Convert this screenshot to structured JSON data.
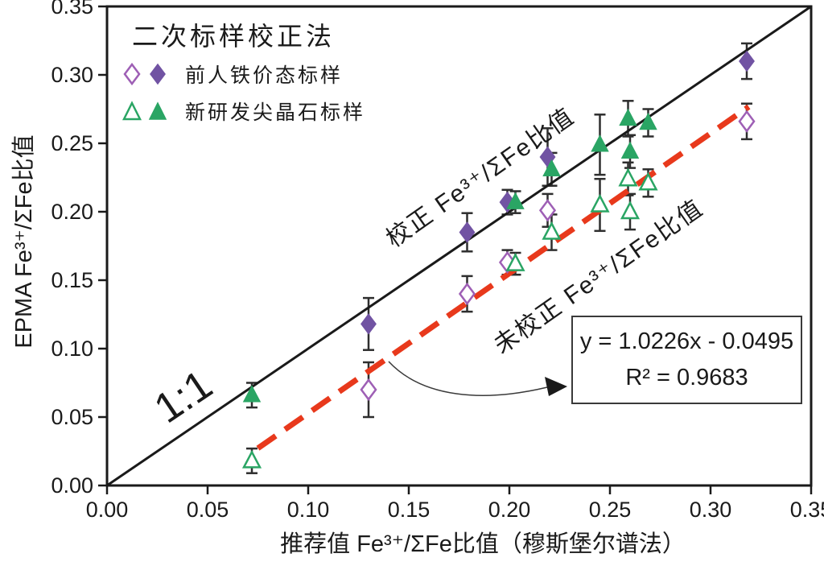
{
  "title": "二次标样校正法",
  "legend": {
    "items": [
      {
        "label": "前人铁价态标样",
        "marker": "diamond"
      },
      {
        "label": "新研发尖晶石标样",
        "marker": "triangle"
      }
    ]
  },
  "annotations": {
    "one_to_one": "1:1",
    "corrected_label": "校正 Fe³⁺/ΣFe比值",
    "uncorrected_label": "未校正 Fe³⁺/ΣFe比值",
    "equation_line1": "y = 1.0226x - 0.0495",
    "equation_line2": "R² = 0.9683"
  },
  "colors": {
    "axis": "#1a1a1a",
    "text": "#1a1a1a",
    "error_bar": "#2e2e2e",
    "purple": "#7153a3",
    "purple_open": "#9e5fb5",
    "green": "#2aa564",
    "regression_red": "#e8391c",
    "identity_black": "#1a1a1a"
  },
  "chart_data": {
    "type": "scatter",
    "title": "二次标样校正法",
    "xlabel": "推荐值 Fe³⁺/ΣFe比值（穆斯堡尔谱法）",
    "ylabel": "EPMA Fe³⁺/ΣFe比值",
    "xlim": [
      0,
      0.35
    ],
    "ylim": [
      0,
      0.35
    ],
    "x_ticks": [
      "0.00",
      "0.05",
      "0.10",
      "0.15",
      "0.20",
      "0.25",
      "0.30",
      "0.35"
    ],
    "y_ticks": [
      "0.00",
      "0.05",
      "0.10",
      "0.15",
      "0.20",
      "0.25",
      "0.30",
      "0.35"
    ],
    "grid": false,
    "legend_position": "top-left",
    "series": [
      {
        "name": "前人铁价态标样-校正",
        "marker": "diamond",
        "filled": true,
        "color": "#7153a3",
        "points": [
          {
            "x": 0.13,
            "y": 0.118,
            "err": 0.019
          },
          {
            "x": 0.179,
            "y": 0.185,
            "err": 0.014
          },
          {
            "x": 0.199,
            "y": 0.207,
            "err": 0.009
          },
          {
            "x": 0.219,
            "y": 0.24,
            "err": 0.021
          },
          {
            "x": 0.318,
            "y": 0.31,
            "err": 0.013
          }
        ]
      },
      {
        "name": "前人铁价态标样-未校正",
        "marker": "diamond",
        "filled": false,
        "color": "#9e5fb5",
        "points": [
          {
            "x": 0.13,
            "y": 0.07,
            "err": 0.02
          },
          {
            "x": 0.179,
            "y": 0.14,
            "err": 0.013
          },
          {
            "x": 0.199,
            "y": 0.163,
            "err": 0.009
          },
          {
            "x": 0.219,
            "y": 0.201,
            "err": 0.012
          },
          {
            "x": 0.318,
            "y": 0.266,
            "err": 0.013
          }
        ]
      },
      {
        "name": "新研发尖晶石标样-校正",
        "marker": "triangle",
        "filled": true,
        "color": "#2aa564",
        "points": [
          {
            "x": 0.072,
            "y": 0.066,
            "err": 0.009
          },
          {
            "x": 0.203,
            "y": 0.207,
            "err": 0.008
          },
          {
            "x": 0.221,
            "y": 0.231,
            "err": 0.012
          },
          {
            "x": 0.245,
            "y": 0.249,
            "err": 0.022
          },
          {
            "x": 0.259,
            "y": 0.268,
            "err": 0.013
          },
          {
            "x": 0.26,
            "y": 0.244,
            "err": 0.012
          },
          {
            "x": 0.269,
            "y": 0.265,
            "err": 0.01
          }
        ]
      },
      {
        "name": "新研发尖晶石标样-未校正",
        "marker": "triangle",
        "filled": false,
        "color": "#2aa564",
        "points": [
          {
            "x": 0.072,
            "y": 0.018,
            "err": 0.009
          },
          {
            "x": 0.203,
            "y": 0.162,
            "err": 0.008
          },
          {
            "x": 0.221,
            "y": 0.185,
            "err": 0.013
          },
          {
            "x": 0.245,
            "y": 0.205,
            "err": 0.019
          },
          {
            "x": 0.259,
            "y": 0.224,
            "err": 0.012
          },
          {
            "x": 0.26,
            "y": 0.2,
            "err": 0.013
          },
          {
            "x": 0.269,
            "y": 0.221,
            "err": 0.01
          }
        ]
      }
    ],
    "lines": [
      {
        "name": "1:1线",
        "type": "identity",
        "style": "solid",
        "color": "#1a1a1a",
        "x": [
          0,
          0.35
        ],
        "y": [
          0,
          0.35
        ]
      },
      {
        "name": "回归线",
        "type": "regression",
        "style": "dashed",
        "color": "#e8391c",
        "slope": 1.0226,
        "intercept": -0.0495,
        "r2": 0.9683,
        "x_range": [
          0.075,
          0.319
        ]
      }
    ]
  }
}
